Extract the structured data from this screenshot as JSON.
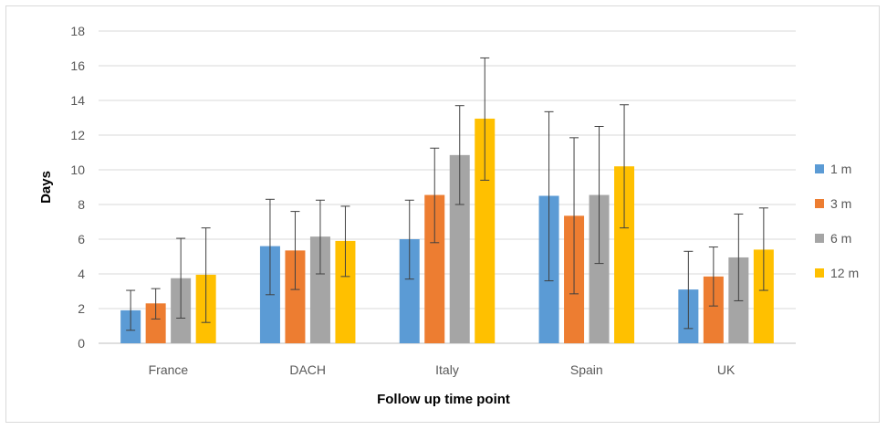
{
  "chart_data": {
    "type": "bar",
    "title": "",
    "xlabel": "Follow up time point",
    "ylabel": "Days",
    "ylim": [
      0,
      18
    ],
    "yticks": [
      0,
      2,
      4,
      6,
      8,
      10,
      12,
      14,
      16,
      18
    ],
    "grid": true,
    "legend_position": "right",
    "error_bars": true,
    "categories": [
      "France",
      "DACH",
      "Italy",
      "Spain",
      "UK"
    ],
    "series": [
      {
        "name": "1 m",
        "color": "#5b9bd5",
        "values": [
          1.9,
          5.6,
          6.0,
          8.5,
          3.1
        ],
        "error_low": [
          0.75,
          2.8,
          3.7,
          3.6,
          0.85
        ],
        "error_high": [
          3.05,
          8.3,
          8.25,
          13.35,
          5.3
        ]
      },
      {
        "name": "3 m",
        "color": "#ed7d31",
        "values": [
          2.3,
          5.35,
          8.55,
          7.35,
          3.85
        ],
        "error_low": [
          1.4,
          3.1,
          5.8,
          2.85,
          2.15
        ],
        "error_high": [
          3.15,
          7.6,
          11.25,
          11.85,
          5.55
        ]
      },
      {
        "name": "6 m",
        "color": "#a5a5a5",
        "values": [
          3.75,
          6.15,
          10.85,
          8.55,
          4.95
        ],
        "error_low": [
          1.45,
          4.0,
          8.0,
          4.6,
          2.45
        ],
        "error_high": [
          6.05,
          8.25,
          13.7,
          12.5,
          7.45
        ]
      },
      {
        "name": "12 m",
        "color": "#ffc000",
        "values": [
          3.95,
          5.9,
          12.95,
          10.2,
          5.4
        ],
        "error_low": [
          1.2,
          3.85,
          9.4,
          6.65,
          3.05
        ],
        "error_high": [
          6.65,
          7.9,
          16.45,
          13.75,
          7.8
        ]
      }
    ]
  }
}
